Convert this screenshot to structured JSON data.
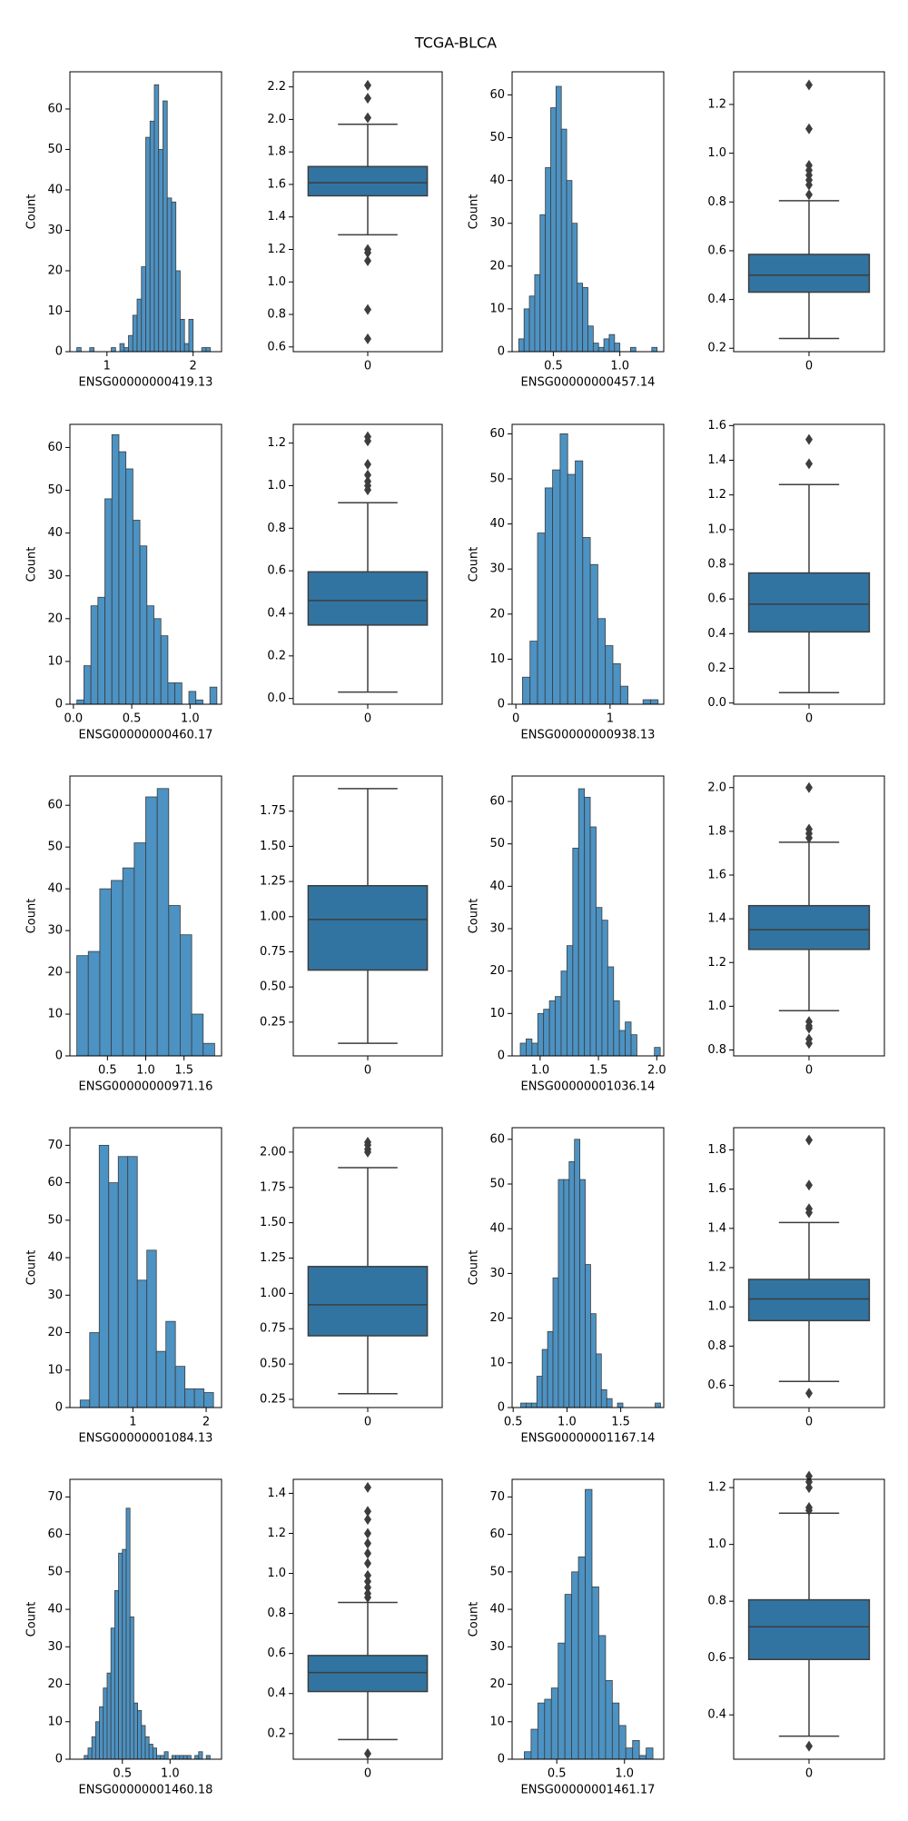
{
  "title": "TCGA-BLCA",
  "chart_data": [
    {
      "type": "histogram",
      "xlabel": "ENSG00000000419.13",
      "ylabel": "Count",
      "color": "#4c92c3",
      "bins": [
        0.65,
        0.7,
        0.75,
        0.8,
        0.85,
        0.9,
        0.95,
        1,
        1.05,
        1.1,
        1.15,
        1.2,
        1.25,
        1.3,
        1.35,
        1.4,
        1.45,
        1.5,
        1.55,
        1.6,
        1.65,
        1.7,
        1.75,
        1.8,
        1.85,
        1.9,
        1.95,
        2,
        2.05,
        2.1,
        2.15,
        2.2,
        2.25
      ],
      "values": [
        1,
        0,
        0,
        1,
        0,
        0,
        0,
        0,
        1,
        0,
        2,
        1,
        4,
        9,
        13,
        21,
        53,
        57,
        66,
        50,
        62,
        38,
        37,
        20,
        8,
        2,
        8,
        0,
        0,
        1,
        1,
        0
      ],
      "xlim": [
        0.57,
        2.33
      ],
      "xticks": [
        1,
        2
      ],
      "ylim": [
        0,
        69.2
      ],
      "yticks": [
        0,
        10,
        20,
        30,
        40,
        50,
        60
      ]
    },
    {
      "type": "box",
      "categories": [
        "0"
      ],
      "color": "#3274a1",
      "q1": 1.53,
      "median": 1.61,
      "q3": 1.71,
      "whislo": 1.29,
      "whishi": 1.97,
      "fliers": [
        2.21,
        2.13,
        2.01,
        1.2,
        1.18,
        1.13,
        0.83,
        0.65
      ],
      "ylim": [
        0.571,
        2.293
      ],
      "yticks": [
        0.6,
        0.8,
        {
          "value": 1,
          "label": "1.0"
        },
        1.2,
        1.4,
        1.6,
        1.8,
        {
          "value": 2,
          "label": "2.0"
        },
        2.2
      ]
    },
    {
      "type": "histogram",
      "xlabel": "ENSG00000000457.14",
      "ylabel": "Count",
      "color": "#4c92c3",
      "bins": [
        0.24,
        0.28,
        0.32,
        0.36,
        0.4,
        0.44,
        0.48,
        0.52,
        0.56,
        0.6,
        0.64,
        0.68,
        0.72,
        0.76,
        0.8,
        0.84,
        0.88,
        0.92,
        0.96,
        1,
        1.04,
        1.08,
        1.12,
        1.16,
        1.2,
        1.24,
        1.28
      ],
      "values": [
        3,
        10,
        13,
        18,
        32,
        43,
        57,
        62,
        52,
        40,
        30,
        16,
        15,
        6,
        2,
        1,
        3,
        4,
        2,
        0,
        0,
        1,
        0,
        0,
        0,
        1
      ],
      "xlim": [
        0.19,
        1.33
      ],
      "xticks": [
        0.5,
        {
          "value": 1,
          "label": "1.0"
        }
      ],
      "ylim": [
        0,
        65.4
      ],
      "yticks": [
        0,
        10,
        20,
        30,
        40,
        50,
        60
      ]
    },
    {
      "type": "box",
      "categories": [
        "0"
      ],
      "color": "#3274a1",
      "q1": 0.43,
      "median": 0.5,
      "q3": 0.585,
      "whislo": 0.24,
      "whishi": 0.805,
      "fliers": [
        1.28,
        1.1,
        0.95,
        0.93,
        0.91,
        0.89,
        0.87,
        0.83
      ],
      "ylim": [
        0.186,
        1.334
      ],
      "yticks": [
        0.2,
        0.4,
        0.6,
        0.8,
        {
          "value": 1,
          "label": "1.0"
        },
        1.2
      ]
    },
    {
      "type": "histogram",
      "xlabel": "ENSG00000000460.17",
      "ylabel": "Count",
      "color": "#4c92c3",
      "bins": [
        0.03,
        0.09,
        0.15,
        0.21,
        0.27,
        0.33,
        0.39,
        0.45,
        0.51,
        0.57,
        0.63,
        0.69,
        0.75,
        0.81,
        0.87,
        0.93,
        0.99,
        1.05,
        1.11,
        1.17,
        1.23
      ],
      "values": [
        1,
        9,
        23,
        25,
        48,
        63,
        59,
        55,
        43,
        37,
        23,
        20,
        16,
        5,
        5,
        0,
        3,
        1,
        0,
        4
      ],
      "xlim": [
        -0.03,
        1.27
      ],
      "xticks": [
        {
          "value": 0,
          "label": "0.0"
        },
        0.5,
        {
          "value": 1,
          "label": "1.0"
        }
      ],
      "ylim": [
        0,
        65.4
      ],
      "yticks": [
        0,
        10,
        20,
        30,
        40,
        50,
        60
      ]
    },
    {
      "type": "box",
      "categories": [
        "0"
      ],
      "color": "#3274a1",
      "q1": 0.345,
      "median": 0.46,
      "q3": 0.595,
      "whislo": 0.03,
      "whishi": 0.92,
      "fliers": [
        1.23,
        1.21,
        1.1,
        1.05,
        1.02,
        1.0,
        0.98
      ],
      "ylim": [
        -0.027,
        1.288
      ],
      "yticks": [
        {
          "value": 0,
          "label": "0.0"
        },
        0.2,
        0.4,
        0.6,
        0.8,
        {
          "value": 1,
          "label": "1.0"
        },
        1.2
      ]
    },
    {
      "type": "histogram",
      "xlabel": "ENSG00000000938.13",
      "ylabel": "Count",
      "color": "#4c92c3",
      "bins": [
        0.07,
        0.15,
        0.23,
        0.31,
        0.39,
        0.47,
        0.55,
        0.63,
        0.71,
        0.79,
        0.87,
        0.95,
        1.03,
        1.11,
        1.19,
        1.27,
        1.35,
        1.43,
        1.51
      ],
      "values": [
        6,
        14,
        38,
        48,
        52,
        60,
        51,
        54,
        37,
        31,
        19,
        13,
        9,
        4,
        0,
        0,
        1,
        1
      ],
      "xlim": [
        -0.04,
        1.57
      ],
      "xticks": [
        0,
        1
      ],
      "ylim": [
        0,
        62.1
      ],
      "yticks": [
        0,
        10,
        20,
        30,
        40,
        50,
        60
      ]
    },
    {
      "type": "box",
      "categories": [
        "0"
      ],
      "color": "#3274a1",
      "q1": 0.41,
      "median": 0.57,
      "q3": 0.75,
      "whislo": 0.06,
      "whishi": 1.26,
      "fliers": [
        1.52,
        1.38
      ],
      "ylim": [
        -0.007,
        1.607
      ],
      "yticks": [
        {
          "value": 0,
          "label": "0.0"
        },
        0.2,
        0.4,
        0.6,
        0.8,
        {
          "value": 1,
          "label": "1.0"
        },
        1.2,
        1.4,
        1.6
      ]
    },
    {
      "type": "histogram",
      "xlabel": "ENSG00000000971.16",
      "ylabel": "Count",
      "color": "#4c92c3",
      "bins": [
        0.1,
        0.25,
        0.4,
        0.55,
        0.7,
        0.85,
        1,
        1.15,
        1.3,
        1.45,
        1.6,
        1.75,
        1.9
      ],
      "values": [
        24,
        25,
        40,
        42,
        45,
        51,
        62,
        64,
        36,
        29,
        10,
        3
      ],
      "xlim": [
        0.01,
        1.99
      ],
      "xticks": [
        0.5,
        {
          "value": 1,
          "label": "1.0"
        },
        1.5
      ],
      "ylim": [
        0,
        67
      ],
      "yticks": [
        0,
        10,
        20,
        30,
        40,
        50,
        60
      ]
    },
    {
      "type": "box",
      "categories": [
        "0"
      ],
      "color": "#3274a1",
      "q1": 0.62,
      "median": 0.98,
      "q3": 1.22,
      "whislo": 0.1,
      "whishi": 1.91,
      "fliers": [],
      "ylim": [
        0.01,
        2.0
      ],
      "yticks": [
        0.25,
        {
          "value": 0.5,
          "label": "0.50"
        },
        0.75,
        {
          "value": 1,
          "label": "1.00"
        },
        1.25,
        {
          "value": 1.5,
          "label": "1.50"
        },
        1.75
      ]
    },
    {
      "type": "histogram",
      "xlabel": "ENSG00000001036.14",
      "ylabel": "Count",
      "color": "#4c92c3",
      "bins": [
        0.83,
        0.88,
        0.93,
        0.98,
        1.03,
        1.08,
        1.13,
        1.18,
        1.23,
        1.28,
        1.33,
        1.38,
        1.43,
        1.48,
        1.53,
        1.58,
        1.63,
        1.68,
        1.73,
        1.78,
        1.83,
        1.88,
        1.93,
        1.98,
        2.03
      ],
      "values": [
        3,
        4,
        3,
        10,
        11,
        13,
        14,
        20,
        26,
        49,
        63,
        61,
        54,
        35,
        32,
        21,
        13,
        6,
        8,
        5,
        0,
        0,
        0,
        2
      ],
      "xlim": [
        0.76,
        2.06
      ],
      "xticks": [
        {
          "value": 1,
          "label": "1.0"
        },
        1.5,
        {
          "value": 2,
          "label": "2.0"
        }
      ],
      "ylim": [
        0,
        66
      ],
      "yticks": [
        0,
        10,
        20,
        30,
        40,
        50,
        60
      ]
    },
    {
      "type": "box",
      "categories": [
        "0"
      ],
      "color": "#3274a1",
      "q1": 1.26,
      "median": 1.35,
      "q3": 1.46,
      "whislo": 0.98,
      "whishi": 1.75,
      "fliers": [
        2.0,
        1.81,
        1.79,
        1.77,
        0.93,
        0.91,
        0.9,
        0.85,
        0.83
      ],
      "ylim": [
        0.773,
        2.053
      ],
      "yticks": [
        0.8,
        {
          "value": 1,
          "label": "1.0"
        },
        1.2,
        1.4,
        1.6,
        1.8,
        {
          "value": 2,
          "label": "2.0"
        }
      ]
    },
    {
      "type": "histogram",
      "xlabel": "ENSG00000001084.13",
      "ylabel": "Count",
      "color": "#4c92c3",
      "bins": [
        0.28,
        0.41,
        0.54,
        0.67,
        0.8,
        0.93,
        1.06,
        1.19,
        1.32,
        1.45,
        1.58,
        1.71,
        1.84,
        1.97,
        2.1
      ],
      "values": [
        2,
        20,
        70,
        60,
        67,
        67,
        34,
        42,
        15,
        23,
        11,
        5,
        5,
        4
      ],
      "xlim": [
        0.14,
        2.21
      ],
      "xticks": [
        1,
        2
      ],
      "ylim": [
        0,
        74.7
      ],
      "yticks": [
        0,
        10,
        20,
        30,
        40,
        50,
        60,
        70
      ]
    },
    {
      "type": "box",
      "categories": [
        "0"
      ],
      "color": "#3274a1",
      "q1": 0.7,
      "median": 0.92,
      "q3": 1.19,
      "whislo": 0.29,
      "whishi": 1.89,
      "fliers": [
        2.07,
        2.05,
        2.02,
        2.0
      ],
      "ylim": [
        0.192,
        2.173
      ],
      "yticks": [
        0.25,
        {
          "value": 0.5,
          "label": "0.50"
        },
        0.75,
        {
          "value": 1,
          "label": "1.00"
        },
        1.25,
        {
          "value": 1.5,
          "label": "1.50"
        },
        1.75,
        {
          "value": 2,
          "label": "2.00"
        }
      ]
    },
    {
      "type": "histogram",
      "xlabel": "ENSG00000001167.14",
      "ylabel": "Count",
      "color": "#4c92c3",
      "bins": [
        0.57,
        0.62,
        0.67,
        0.72,
        0.77,
        0.82,
        0.87,
        0.92,
        0.97,
        1.02,
        1.07,
        1.12,
        1.17,
        1.22,
        1.27,
        1.32,
        1.37,
        1.42,
        1.47,
        1.52,
        1.57,
        1.62,
        1.67,
        1.72,
        1.77,
        1.82,
        1.87
      ],
      "values": [
        1,
        1,
        1,
        7,
        13,
        17,
        29,
        51,
        51,
        55,
        60,
        51,
        32,
        21,
        12,
        4,
        2,
        0,
        1,
        0,
        0,
        0,
        0,
        0,
        0,
        1
      ],
      "xlim": [
        0.49,
        1.9
      ],
      "xticks": [
        0.5,
        {
          "value": 1,
          "label": "1.0"
        },
        1.5
      ],
      "ylim": [
        0,
        62.6
      ],
      "yticks": [
        0,
        10,
        20,
        30,
        40,
        50,
        60
      ]
    },
    {
      "type": "box",
      "categories": [
        "0"
      ],
      "color": "#3274a1",
      "q1": 0.93,
      "median": 1.04,
      "q3": 1.14,
      "whislo": 0.62,
      "whishi": 1.43,
      "fliers": [
        1.85,
        1.62,
        1.5,
        1.48,
        0.56
      ],
      "ylim": [
        0.487,
        1.913
      ],
      "yticks": [
        0.6,
        0.8,
        {
          "value": 1,
          "label": "1.0"
        },
        1.2,
        1.4,
        1.6,
        1.8
      ]
    },
    {
      "type": "histogram",
      "xlabel": "ENSG00000001460.18",
      "ylabel": "Count",
      "color": "#4c92c3",
      "bins": [
        0.1,
        0.14,
        0.18,
        0.22,
        0.26,
        0.3,
        0.34,
        0.38,
        0.42,
        0.46,
        0.5,
        0.54,
        0.58,
        0.62,
        0.66,
        0.7,
        0.74,
        0.78,
        0.82,
        0.86,
        0.9,
        0.94,
        0.98,
        1.02,
        1.06,
        1.1,
        1.14,
        1.18,
        1.22,
        1.26,
        1.3,
        1.34,
        1.38,
        1.42
      ],
      "values": [
        1,
        3,
        6,
        10,
        14,
        19,
        23,
        35,
        45,
        55,
        56,
        67,
        38,
        15,
        13,
        9,
        6,
        4,
        3,
        1,
        1,
        2,
        0,
        1,
        1,
        1,
        1,
        1,
        0,
        1,
        2,
        0,
        1
      ],
      "xlim": [
        -0.05,
        1.54
      ],
      "xticks": [
        0.5,
        {
          "value": 1,
          "label": "1.0"
        }
      ],
      "ylim": [
        0,
        74.7
      ],
      "yticks": [
        0,
        10,
        20,
        30,
        40,
        50,
        60,
        70
      ]
    },
    {
      "type": "box",
      "categories": [
        "0"
      ],
      "color": "#3274a1",
      "q1": 0.41,
      "median": 0.505,
      "q3": 0.59,
      "whislo": 0.17,
      "whishi": 0.855,
      "fliers": [
        1.43,
        1.31,
        1.27,
        1.2,
        1.15,
        1.1,
        1.05,
        0.99,
        0.96,
        0.93,
        0.9,
        0.88,
        0.1
      ],
      "ylim": [
        0.072,
        1.47
      ],
      "yticks": [
        0.2,
        0.4,
        0.6,
        0.8,
        {
          "value": 1,
          "label": "1.0"
        },
        1.2,
        1.4
      ]
    },
    {
      "type": "histogram",
      "xlabel": "ENSG00000001461.17",
      "ylabel": "Count",
      "color": "#4c92c3",
      "bins": [
        0.26,
        0.31,
        0.36,
        0.41,
        0.46,
        0.51,
        0.56,
        0.61,
        0.66,
        0.71,
        0.76,
        0.81,
        0.86,
        0.91,
        0.96,
        1.01,
        1.06,
        1.11,
        1.16,
        1.21
      ],
      "values": [
        2,
        8,
        15,
        16,
        19,
        31,
        44,
        50,
        54,
        72,
        46,
        33,
        21,
        15,
        9,
        3,
        5,
        1,
        3
      ],
      "xlim": [
        0.17,
        1.29
      ],
      "xticks": [
        0.5,
        {
          "value": 1,
          "label": "1.0"
        }
      ],
      "ylim": [
        0,
        74.7
      ],
      "yticks": [
        0,
        10,
        20,
        30,
        40,
        50,
        60,
        70
      ]
    },
    {
      "type": "box",
      "categories": [
        "0"
      ],
      "color": "#3274a1",
      "q1": 0.595,
      "median": 0.71,
      "q3": 0.805,
      "whislo": 0.325,
      "whishi": 1.11,
      "fliers": [
        1.24,
        1.22,
        1.2,
        1.13,
        1.12,
        0.29
      ],
      "ylim": [
        0.244,
        1.229
      ],
      "yticks": [
        0.4,
        0.6,
        0.8,
        {
          "value": 1,
          "label": "1.0"
        },
        1.2
      ]
    }
  ]
}
